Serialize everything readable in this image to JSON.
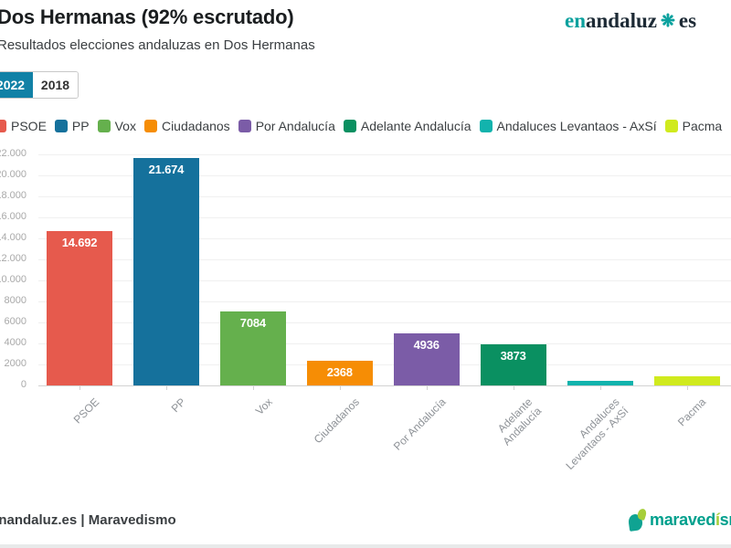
{
  "header": {
    "title": "Dos Hermanas (92% escrutado)",
    "subtitle": "Resultados elecciones andaluzas en Dos Hermanas",
    "tabs": [
      {
        "label": "2022",
        "active": true
      },
      {
        "label": "2018",
        "active": false
      }
    ],
    "brand": {
      "prefix": "en",
      "name": "andaluz",
      "flower_icon": "❋",
      "suffix": "es",
      "teal": "#0ba19e",
      "dark": "#1d2a35"
    }
  },
  "chart_data": {
    "type": "bar",
    "title": "Dos Hermanas (92% escrutado)",
    "subtitle": "Resultados elecciones andaluzas en Dos Hermanas",
    "categories": [
      "PSOE",
      "PP",
      "Vox",
      "Ciudadanos",
      "Por Andalucía",
      "Adelante Andalucía",
      "Andaluces Levantaos - AxSí",
      "Pacma"
    ],
    "values": [
      14692,
      21674,
      7084,
      2368,
      4936,
      3873,
      440,
      880
    ],
    "value_labels": [
      "14.692",
      "21.674",
      "7084",
      "2368",
      "4936",
      "3873",
      "",
      ""
    ],
    "colors": [
      "#e65a4d",
      "#15719c",
      "#65b04d",
      "#f68d05",
      "#7b5ca7",
      "#0a9061",
      "#12b3ad",
      "#d0ea1e"
    ],
    "xtick_lines": [
      [
        "PSOE"
      ],
      [
        "PP"
      ],
      [
        "Vox"
      ],
      [
        "Ciudadanos"
      ],
      [
        "Por Andalucía"
      ],
      [
        "Adelante",
        "Andalucía"
      ],
      [
        "Andaluces",
        "Levantaos - AxSí"
      ],
      [
        "Pacma"
      ]
    ],
    "ylim": [
      0,
      22000
    ],
    "ytick_step": 2000,
    "ytick_labels": [
      "0",
      "2000",
      "4000",
      "6000",
      "8000",
      "10.000",
      "12.000",
      "14.000",
      "16.000",
      "18.000",
      "20.000",
      "22.000"
    ],
    "grid": true,
    "legend_position": "top"
  },
  "footer": {
    "credit": "enandaluz.es | Maravedismo",
    "logo": {
      "part1": "maraved",
      "accent": "í",
      "part2": "sm",
      "teal": "#00a08d",
      "lime": "#a6ce39"
    }
  }
}
